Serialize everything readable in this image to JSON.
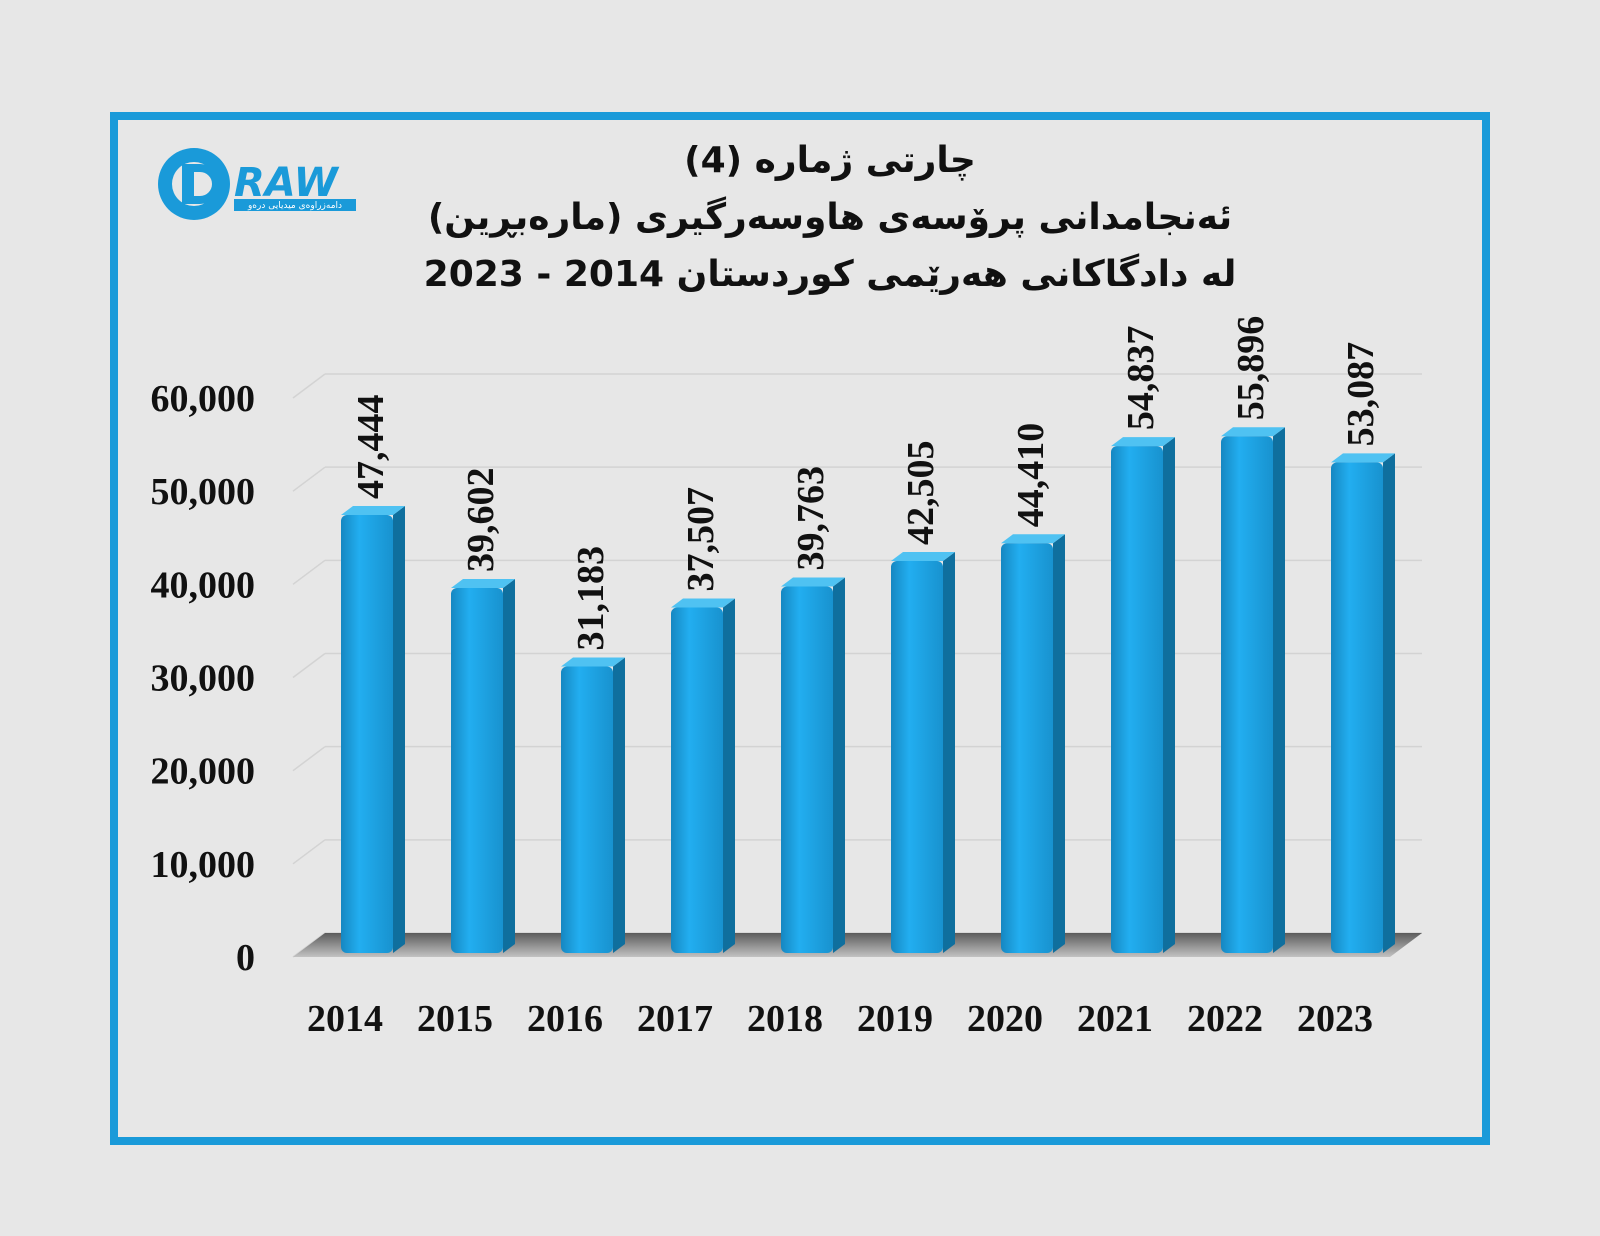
{
  "logo": {
    "brand_text": "RAW",
    "tagline": "دامەزراوەی میدیایی درەو"
  },
  "titles": {
    "line1": "چارتی ژمارە (4)",
    "line2": "ئەنجامدانی پرۆسەی هاوسەرگیری (مارەبڕین)",
    "line3": "لە دادگاکانی هەرێمی کوردستان 2014 - 2023"
  },
  "colors": {
    "bar": "#1aa0dc",
    "frame": "#1a9ad9",
    "background": "#e7e7e7"
  },
  "chart_data": {
    "type": "bar",
    "title": "چارتی ژمارە (4) ئەنجامدانی پرۆسەی هاوسەرگیری (مارەبڕین) لە دادگاکانی هەرێمی کوردستان 2014 - 2023",
    "categories": [
      "2014",
      "2015",
      "2016",
      "2017",
      "2018",
      "2019",
      "2020",
      "2021",
      "2022",
      "2023"
    ],
    "values": [
      47444,
      39602,
      31183,
      37507,
      39763,
      42505,
      44410,
      54837,
      55896,
      53087
    ],
    "data_labels": [
      "47,444",
      "39,602",
      "31,183",
      "37,507",
      "39,763",
      "42,505",
      "44,410",
      "54,837",
      "55,896",
      "53,087"
    ],
    "yticks": [
      "0",
      "10,000",
      "20,000",
      "30,000",
      "40,000",
      "50,000",
      "60,000"
    ],
    "ylim": [
      0,
      60000
    ],
    "grid": true,
    "legend": "none"
  }
}
